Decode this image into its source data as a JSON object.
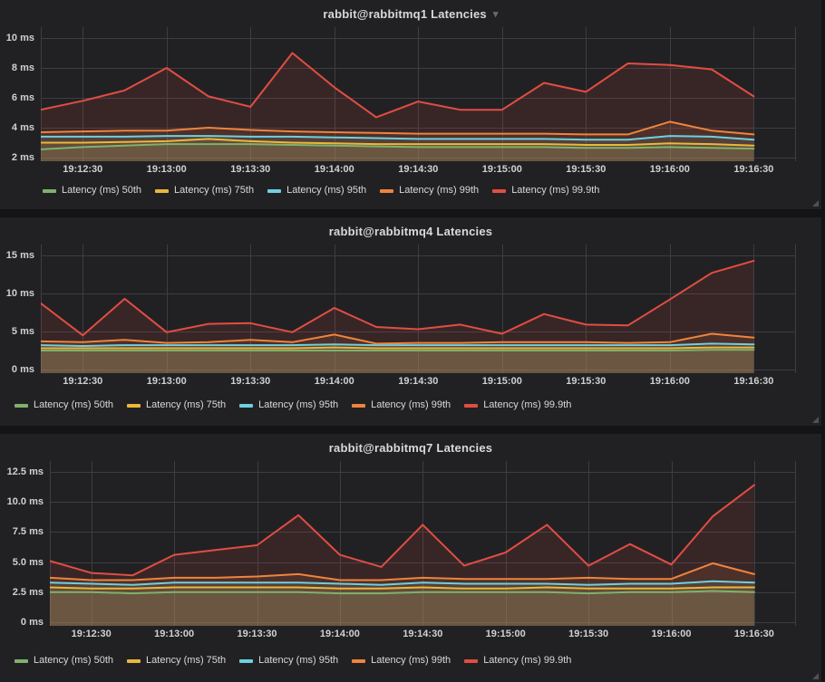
{
  "theme": {
    "page_bg": "#141416",
    "panel_bg": "#212124",
    "grid_color": "#3d3d42",
    "title_color": "#d8d9da",
    "tick_color": "#d0d1d2",
    "legend_text_color": "#d8d9da",
    "resize_handle_color": "#515155"
  },
  "icons": {
    "panel_menu_caret": "▾"
  },
  "chart_data": [
    {
      "type": "area",
      "title": "rabbit@rabbitmq1 Latencies",
      "has_menu_caret": true,
      "x_times": [
        "19:12:15",
        "19:12:30",
        "19:12:45",
        "19:13:00",
        "19:13:15",
        "19:13:30",
        "19:13:45",
        "19:14:00",
        "19:14:15",
        "19:14:30",
        "19:14:45",
        "19:15:00",
        "19:15:15",
        "19:15:30",
        "19:15:45",
        "19:16:00",
        "19:16:15",
        "19:16:30"
      ],
      "x_ticks": [
        "19:12:30",
        "19:13:00",
        "19:13:30",
        "19:14:00",
        "19:14:30",
        "19:15:00",
        "19:15:30",
        "19:16:00",
        "19:16:30"
      ],
      "ylim": [
        2,
        10
      ],
      "ytick_values": [
        2,
        4,
        6,
        8,
        10
      ],
      "ytick_labels": [
        "2 ms",
        "4 ms",
        "6 ms",
        "8 ms",
        "10 ms"
      ],
      "unit": "ms",
      "grid": true,
      "legend_position": "bottom-left",
      "series": [
        {
          "name": "Latency (ms) 50th",
          "color": "#7EB26D",
          "values": [
            2.55,
            2.7,
            2.8,
            2.9,
            2.9,
            2.9,
            2.85,
            2.8,
            2.75,
            2.7,
            2.7,
            2.7,
            2.7,
            2.65,
            2.65,
            2.7,
            2.65,
            2.6
          ]
        },
        {
          "name": "Latency (ms) 75th",
          "color": "#EAB839",
          "values": [
            3.0,
            3.0,
            3.05,
            3.1,
            3.25,
            3.1,
            3.0,
            2.95,
            2.9,
            2.9,
            2.9,
            2.9,
            2.9,
            2.85,
            2.85,
            2.95,
            2.9,
            2.8
          ]
        },
        {
          "name": "Latency (ms) 95th",
          "color": "#6ED0E0",
          "values": [
            3.4,
            3.4,
            3.4,
            3.45,
            3.45,
            3.4,
            3.4,
            3.35,
            3.3,
            3.25,
            3.25,
            3.25,
            3.25,
            3.2,
            3.2,
            3.45,
            3.4,
            3.2
          ]
        },
        {
          "name": "Latency (ms) 99th",
          "color": "#EF843C",
          "values": [
            3.7,
            3.75,
            3.8,
            3.8,
            4.0,
            3.85,
            3.75,
            3.7,
            3.65,
            3.6,
            3.6,
            3.6,
            3.6,
            3.55,
            3.55,
            4.4,
            3.8,
            3.55
          ]
        },
        {
          "name": "Latency (ms) 99.9th",
          "color": "#E24D42",
          "values": [
            5.2,
            5.8,
            6.5,
            8.0,
            6.1,
            5.4,
            9.0,
            6.7,
            4.7,
            5.75,
            5.2,
            5.2,
            7.0,
            6.4,
            8.3,
            8.2,
            7.9,
            6.1
          ]
        }
      ]
    },
    {
      "type": "area",
      "title": "rabbit@rabbitmq4 Latencies",
      "has_menu_caret": false,
      "x_times": [
        "19:12:15",
        "19:12:30",
        "19:12:45",
        "19:13:00",
        "19:13:15",
        "19:13:30",
        "19:13:45",
        "19:14:00",
        "19:14:15",
        "19:14:30",
        "19:14:45",
        "19:15:00",
        "19:15:15",
        "19:15:30",
        "19:15:45",
        "19:16:00",
        "19:16:15",
        "19:16:30"
      ],
      "x_ticks": [
        "19:12:30",
        "19:13:00",
        "19:13:30",
        "19:14:00",
        "19:14:30",
        "19:15:00",
        "19:15:30",
        "19:16:00",
        "19:16:30"
      ],
      "ylim": [
        0,
        15
      ],
      "ytick_values": [
        0,
        5,
        10,
        15
      ],
      "ytick_labels": [
        "0 ms",
        "5 ms",
        "10 ms",
        "15 ms"
      ],
      "unit": "ms",
      "grid": true,
      "legend_position": "bottom-left",
      "series": [
        {
          "name": "Latency (ms) 50th",
          "color": "#7EB26D",
          "values": [
            2.5,
            2.5,
            2.5,
            2.5,
            2.5,
            2.5,
            2.5,
            2.5,
            2.5,
            2.5,
            2.5,
            2.5,
            2.5,
            2.5,
            2.5,
            2.5,
            2.6,
            2.6
          ]
        },
        {
          "name": "Latency (ms) 75th",
          "color": "#EAB839",
          "values": [
            2.8,
            2.8,
            2.8,
            2.8,
            2.8,
            2.8,
            2.8,
            2.9,
            2.8,
            2.8,
            2.8,
            2.8,
            2.8,
            2.8,
            2.8,
            2.8,
            2.9,
            2.9
          ]
        },
        {
          "name": "Latency (ms) 95th",
          "color": "#6ED0E0",
          "values": [
            3.2,
            3.1,
            3.2,
            3.2,
            3.2,
            3.2,
            3.2,
            3.3,
            3.2,
            3.2,
            3.2,
            3.2,
            3.2,
            3.2,
            3.2,
            3.2,
            3.4,
            3.3
          ]
        },
        {
          "name": "Latency (ms) 99th",
          "color": "#EF843C",
          "values": [
            3.7,
            3.6,
            3.9,
            3.5,
            3.6,
            3.9,
            3.6,
            4.6,
            3.4,
            3.5,
            3.5,
            3.6,
            3.6,
            3.6,
            3.5,
            3.6,
            4.7,
            4.2
          ]
        },
        {
          "name": "Latency (ms) 99.9th",
          "color": "#E24D42",
          "values": [
            8.7,
            4.5,
            9.3,
            4.9,
            6.0,
            6.1,
            4.9,
            8.1,
            5.6,
            5.3,
            5.9,
            4.7,
            7.3,
            5.9,
            5.8,
            9.2,
            12.7,
            14.3
          ]
        }
      ]
    },
    {
      "type": "area",
      "title": "rabbit@rabbitmq7 Latencies",
      "has_menu_caret": false,
      "x_times": [
        "19:12:15",
        "19:12:30",
        "19:12:45",
        "19:13:00",
        "19:13:15",
        "19:13:30",
        "19:13:45",
        "19:14:00",
        "19:14:15",
        "19:14:30",
        "19:14:45",
        "19:15:00",
        "19:15:15",
        "19:15:30",
        "19:15:45",
        "19:16:00",
        "19:16:15",
        "19:16:30"
      ],
      "x_ticks": [
        "19:12:30",
        "19:13:00",
        "19:13:30",
        "19:14:00",
        "19:14:30",
        "19:15:00",
        "19:15:30",
        "19:16:00",
        "19:16:30"
      ],
      "ylim": [
        0,
        12.5
      ],
      "ytick_values": [
        0,
        2.5,
        5,
        7.5,
        10,
        12.5
      ],
      "ytick_labels": [
        "0 ms",
        "2.5 ms",
        "5.0 ms",
        "7.5 ms",
        "10.0 ms",
        "12.5 ms"
      ],
      "unit": "ms",
      "grid": true,
      "legend_position": "bottom-left",
      "series": [
        {
          "name": "Latency (ms) 50th",
          "color": "#7EB26D",
          "values": [
            2.5,
            2.5,
            2.4,
            2.5,
            2.5,
            2.5,
            2.5,
            2.4,
            2.4,
            2.5,
            2.5,
            2.5,
            2.5,
            2.4,
            2.5,
            2.5,
            2.6,
            2.5
          ]
        },
        {
          "name": "Latency (ms) 75th",
          "color": "#EAB839",
          "values": [
            2.9,
            2.8,
            2.8,
            2.9,
            2.9,
            2.9,
            2.9,
            2.8,
            2.8,
            2.9,
            2.8,
            2.8,
            2.9,
            2.8,
            2.8,
            2.8,
            2.9,
            2.9
          ]
        },
        {
          "name": "Latency (ms) 95th",
          "color": "#6ED0E0",
          "values": [
            3.3,
            3.2,
            3.1,
            3.3,
            3.3,
            3.3,
            3.3,
            3.2,
            3.1,
            3.3,
            3.2,
            3.2,
            3.2,
            3.1,
            3.2,
            3.2,
            3.4,
            3.3
          ]
        },
        {
          "name": "Latency (ms) 99th",
          "color": "#EF843C",
          "values": [
            3.7,
            3.5,
            3.5,
            3.7,
            3.7,
            3.8,
            4.0,
            3.5,
            3.5,
            3.7,
            3.6,
            3.6,
            3.6,
            3.7,
            3.6,
            3.6,
            4.9,
            4.0
          ]
        },
        {
          "name": "Latency (ms) 99.9th",
          "color": "#E24D42",
          "values": [
            5.1,
            4.1,
            3.9,
            5.6,
            6.0,
            6.4,
            8.9,
            5.6,
            4.6,
            8.1,
            4.7,
            5.8,
            8.1,
            4.7,
            6.5,
            4.8,
            8.8,
            11.4
          ]
        }
      ]
    }
  ]
}
